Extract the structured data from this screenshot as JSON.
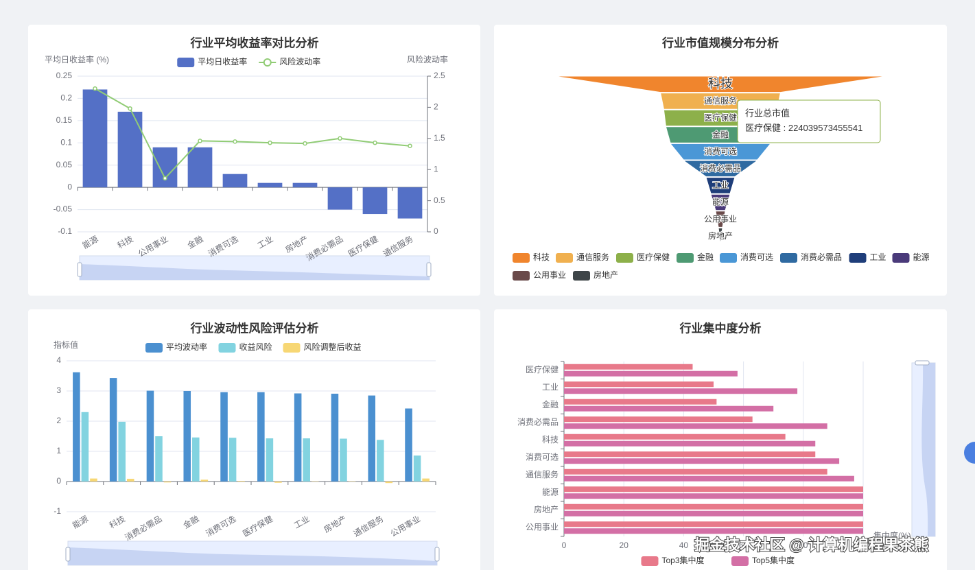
{
  "chart_data": [
    {
      "type": "bar",
      "title": "行业平均收益率对比分析",
      "ylabel": "平均日收益率 (%)",
      "y2label": "风险波动率",
      "categories": [
        "能源",
        "科技",
        "公用事业",
        "金融",
        "消费可选",
        "工业",
        "房地产",
        "消费必需品",
        "医疗保健",
        "通信服务"
      ],
      "series": [
        {
          "name": "平均日收益率",
          "type": "bar",
          "color": "#5470c6",
          "values": [
            0.22,
            0.17,
            0.09,
            0.09,
            0.03,
            0.01,
            0.01,
            -0.05,
            -0.06,
            -0.07
          ]
        },
        {
          "name": "风险波动率",
          "type": "line",
          "axis": "y2",
          "color": "#91cc75",
          "values": [
            2.3,
            1.98,
            0.86,
            1.46,
            1.45,
            1.43,
            1.42,
            1.5,
            1.43,
            1.38
          ]
        }
      ],
      "ylim": [
        -0.1,
        0.25
      ],
      "yticks": [
        -0.1,
        -0.05,
        0,
        0.05,
        0.1,
        0.15,
        0.2,
        0.25
      ],
      "y2lim": [
        0,
        2.5
      ],
      "y2ticks": [
        0,
        0.5,
        1,
        1.5,
        2,
        2.5
      ]
    },
    {
      "type": "funnel",
      "title": "行业市值规模分布分析",
      "series_name": "行业总市值",
      "categories": [
        "科技",
        "通信服务",
        "医疗保健",
        "金融",
        "消费可选",
        "消费必需品",
        "工业",
        "能源",
        "公用事业",
        "房地产"
      ],
      "values": [
        658000000000000,
        237000000000000,
        224039573455541,
        216000000000000,
        198000000000000,
        146000000000000,
        57000000000000,
        38000000000000,
        19000000000000,
        8000000000000
      ],
      "colors": [
        "#f0852d",
        "#f0b04f",
        "#8db04a",
        "#4e9a73",
        "#4a97d6",
        "#2f6aa1",
        "#1f3e7a",
        "#4a3a7a",
        "#6a4a4a",
        "#3e4548"
      ]
    },
    {
      "type": "bar",
      "title": "行业波动性风险评估分析",
      "ylabel": "指标值",
      "categories": [
        "能源",
        "科技",
        "消费必需品",
        "金融",
        "消费可选",
        "医疗保健",
        "工业",
        "房地产",
        "通信服务",
        "公用事业"
      ],
      "series": [
        {
          "name": "平均波动率",
          "type": "bar",
          "color": "#4b90d0",
          "values": [
            3.62,
            3.43,
            3.01,
            3.0,
            2.96,
            2.96,
            2.92,
            2.91,
            2.85,
            2.42
          ]
        },
        {
          "name": "收益风险",
          "type": "bar",
          "color": "#82d3e0",
          "values": [
            2.3,
            1.98,
            1.5,
            1.46,
            1.45,
            1.43,
            1.43,
            1.42,
            1.38,
            0.86
          ]
        },
        {
          "name": "风险调整后收益",
          "type": "bar",
          "color": "#f7d774",
          "values": [
            0.1,
            0.09,
            -0.03,
            0.06,
            0.02,
            -0.04,
            0.01,
            0.01,
            -0.05,
            0.1
          ]
        }
      ],
      "ylim": [
        -1,
        4
      ],
      "yticks": [
        -1,
        0,
        1,
        2,
        3,
        4
      ]
    },
    {
      "type": "barh",
      "title": "行业集中度分析",
      "xlabel": "集中度(%)",
      "categories": [
        "公用事业",
        "房地产",
        "能源",
        "通信服务",
        "消费可选",
        "科技",
        "消费必需品",
        "金融",
        "工业",
        "医疗保健"
      ],
      "series": [
        {
          "name": "Top3集中度",
          "color": "#e8798a",
          "values": [
            100,
            100,
            100,
            88,
            84,
            74,
            63,
            51,
            50,
            43
          ]
        },
        {
          "name": "Top5集中度",
          "color": "#d36fa5",
          "values": [
            100,
            100,
            100,
            97,
            92,
            84,
            88,
            70,
            78,
            58
          ]
        }
      ],
      "xlim": [
        0,
        100
      ],
      "xticks": [
        0,
        20,
        40,
        60,
        80,
        100
      ]
    }
  ],
  "watermark": "掘金技术社区 @ 计算机编程果茶熊"
}
